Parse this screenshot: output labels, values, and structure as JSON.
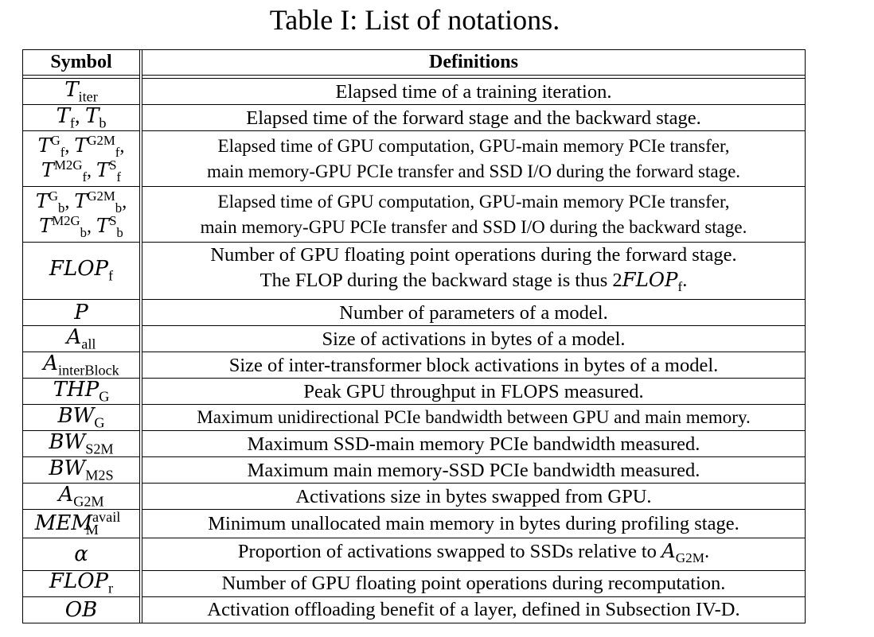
{
  "caption": "Table I: List of notations.",
  "table": {
    "headers": {
      "symbol": "Symbol",
      "definitions": "Definitions"
    },
    "rows": [
      {
        "symbol": "T_iter",
        "definition": "Elapsed time of a training iteration."
      },
      {
        "symbol": "T_f, T_b",
        "definition": "Elapsed time of the forward stage and the backward stage."
      },
      {
        "symbol": "T_f^G, T_f^G2M, T_f^M2G, T_f^S",
        "definition_lines": [
          "Elapsed time of GPU computation, GPU-main memory PCIe transfer,",
          "main memory-GPU PCIe transfer and SSD I/O during the forward stage."
        ]
      },
      {
        "symbol": "T_b^G, T_b^G2M, T_b^M2G, T_b^S",
        "definition_lines": [
          "Elapsed time of GPU computation, GPU-main memory PCIe transfer,",
          "main memory-GPU PCIe transfer and SSD I/O during the backward stage."
        ]
      },
      {
        "symbol": "FLOP_f",
        "definition_lines": [
          "Number of GPU floating point operations during the forward stage.",
          "The FLOP during the backward stage is thus 2FLOP_f."
        ]
      },
      {
        "symbol": "P",
        "definition": "Number of parameters of a model."
      },
      {
        "symbol": "A_all",
        "definition": "Size of activations in bytes of a model."
      },
      {
        "symbol": "A_interBlock",
        "definition": "Size of inter-transformer block activations in bytes of a model."
      },
      {
        "symbol": "THP_G",
        "definition": "Peak GPU throughput in FLOPS measured."
      },
      {
        "symbol": "BW_G",
        "definition": "Maximum unidirectional PCIe bandwidth between GPU and main memory."
      },
      {
        "symbol": "BW_S2M",
        "definition": "Maximum SSD-main memory PCIe bandwidth measured."
      },
      {
        "symbol": "BW_M2S",
        "definition": "Maximum main memory-SSD PCIe bandwidth measured."
      },
      {
        "symbol": "A_G2M",
        "definition": "Activations size in bytes swapped from GPU."
      },
      {
        "symbol": "MEM_M^avail",
        "definition": "Minimum unallocated main memory in bytes during profiling stage."
      },
      {
        "symbol": "α",
        "definition": "Proportion of activations swapped to SSDs relative to A_G2M."
      },
      {
        "symbol": "FLOP_r",
        "definition": "Number of GPU floating point operations during recomputation."
      },
      {
        "symbol": "OB",
        "definition": "Activation offloading benefit of a layer, defined in Subsection IV-D."
      }
    ],
    "math": {
      "T": "T",
      "iter": "iter",
      "f": "f",
      "b": "b",
      "G": "G",
      "G2M": "G2M",
      "M2G": "M2G",
      "S": "S",
      "FLOP": "FLOP",
      "P": "P",
      "A": "A",
      "all": "all",
      "interBlock": "interBlock",
      "THP": "THP",
      "BW": "BW",
      "S2M": "S2M",
      "M2S": "M2S",
      "MEM": "MEM",
      "avail": "avail",
      "M": "M",
      "alpha": "α",
      "r": "r",
      "OB": "OB",
      "comma": ", ",
      "two": "2",
      "period": "."
    },
    "text": {
      "r1": "Elapsed time of a training iteration.",
      "r2": "Elapsed time of the forward stage and the backward stage.",
      "r3a": "Elapsed time of GPU computation, GPU-main memory PCIe transfer,",
      "r3b": "main memory-GPU PCIe transfer and SSD I/O during the forward stage.",
      "r4a": "Elapsed time of GPU computation, GPU-main memory PCIe transfer,",
      "r4b": "main memory-GPU PCIe transfer and SSD I/O during the backward stage.",
      "r5a": "Number of GPU floating point operations during the forward stage.",
      "r5b": "The FLOP during the backward stage is thus ",
      "r6": "Number of parameters of a model.",
      "r7": "Size of activations in bytes of a model.",
      "r8": "Size of inter-transformer block activations in bytes of a model.",
      "r9": "Peak GPU throughput in FLOPS measured.",
      "r10": "Maximum unidirectional PCIe bandwidth between GPU and main memory.",
      "r11": "Maximum SSD-main memory PCIe bandwidth measured.",
      "r12": "Maximum main memory-SSD PCIe bandwidth measured.",
      "r13": "Activations size in bytes swapped from GPU.",
      "r14": "Minimum unallocated main memory in bytes during profiling stage.",
      "r15": "Proportion of activations swapped to SSDs relative to ",
      "r16": "Number of GPU floating point operations during recomputation.",
      "r17": "Activation offloading benefit of a layer, defined in Subsection IV-D."
    }
  }
}
